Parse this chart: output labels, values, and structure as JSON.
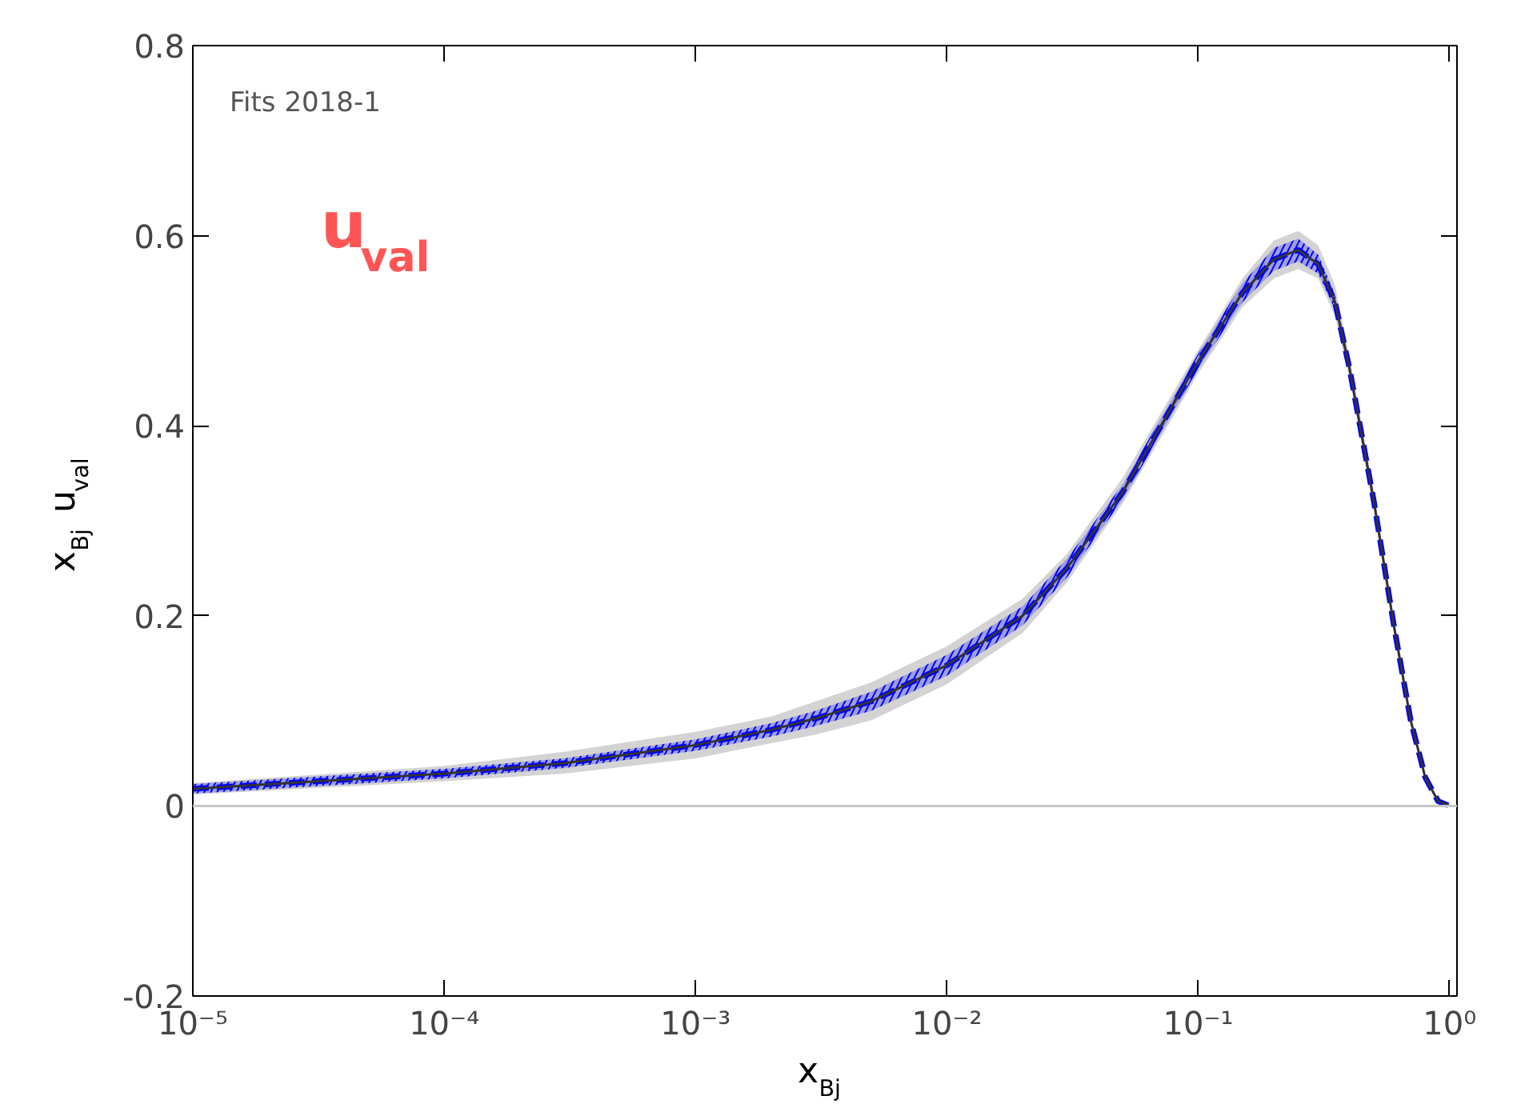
{
  "chart_data": {
    "type": "line",
    "xlabel": "x$_{Bj}$",
    "ylabel": "x$_{Bj}$ u$_{val}$",
    "log": "x",
    "xlim": [
      1e-05,
      1.07
    ],
    "ylim": [
      -0.2,
      0.8
    ],
    "xticks": [
      {
        "value": 1e-05,
        "label": "10⁻⁵"
      },
      {
        "value": 0.0001,
        "label": "10⁻⁴"
      },
      {
        "value": 0.001,
        "label": "10⁻³"
      },
      {
        "value": 0.01,
        "label": "10⁻²"
      },
      {
        "value": 0.1,
        "label": "10⁻¹"
      },
      {
        "value": 1,
        "label": "10⁰"
      }
    ],
    "yticks": [
      -0.2,
      0,
      0.2,
      0.4,
      0.6,
      0.8
    ],
    "x": [
      1e-05,
      0.0001,
      0.0003,
      0.001,
      0.002,
      0.003,
      0.005,
      0.01,
      0.02,
      0.03,
      0.05,
      0.1,
      0.15,
      0.2,
      0.25,
      0.3,
      0.35,
      0.4,
      0.5,
      0.6,
      0.7,
      0.8,
      0.9,
      1.0
    ],
    "series": [
      {
        "color": "#333333",
        "values": [
          0.018,
          0.034,
          0.045,
          0.064,
          0.08,
          0.092,
          0.11,
          0.148,
          0.2,
          0.25,
          0.33,
          0.468,
          0.54,
          0.575,
          0.585,
          0.57,
          0.53,
          0.46,
          0.32,
          0.19,
          0.09,
          0.03,
          0.005,
          0
        ],
        "lower": [
          0.012,
          0.026,
          0.034,
          0.05,
          0.066,
          0.075,
          0.09,
          0.128,
          0.182,
          0.235,
          0.318,
          0.455,
          0.525,
          0.555,
          0.565,
          0.555,
          0.515,
          0.45,
          0.31,
          0.182,
          0.085,
          0.026,
          0.003,
          0
        ],
        "upper": [
          0.024,
          0.042,
          0.057,
          0.078,
          0.094,
          0.11,
          0.13,
          0.168,
          0.218,
          0.265,
          0.345,
          0.48,
          0.555,
          0.595,
          0.605,
          0.59,
          0.548,
          0.472,
          0.33,
          0.198,
          0.095,
          0.034,
          0.007,
          0
        ]
      },
      {
        "color": "#0000ff",
        "line_style": "dashed",
        "values": [
          0.018,
          0.034,
          0.045,
          0.064,
          0.08,
          0.092,
          0.11,
          0.148,
          0.2,
          0.25,
          0.33,
          0.468,
          0.54,
          0.575,
          0.585,
          0.57,
          0.53,
          0.46,
          0.32,
          0.19,
          0.09,
          0.03,
          0.005,
          0
        ],
        "lower": [
          0.013,
          0.029,
          0.04,
          0.058,
          0.073,
          0.084,
          0.1,
          0.137,
          0.19,
          0.24,
          0.322,
          0.46,
          0.53,
          0.563,
          0.573,
          0.56,
          0.522,
          0.454,
          0.314,
          0.186,
          0.087,
          0.028,
          0.004,
          0
        ],
        "upper": [
          0.023,
          0.039,
          0.05,
          0.07,
          0.087,
          0.1,
          0.12,
          0.159,
          0.21,
          0.26,
          0.338,
          0.476,
          0.55,
          0.587,
          0.597,
          0.58,
          0.538,
          0.466,
          0.326,
          0.194,
          0.093,
          0.032,
          0.006,
          0
        ]
      }
    ],
    "ref_lines": [
      {
        "axis": "y",
        "value": 0,
        "color": "#c8c8c8"
      }
    ],
    "annotations": [
      "Fits 2018-1",
      "u$_{val}$"
    ],
    "grid": false
  }
}
